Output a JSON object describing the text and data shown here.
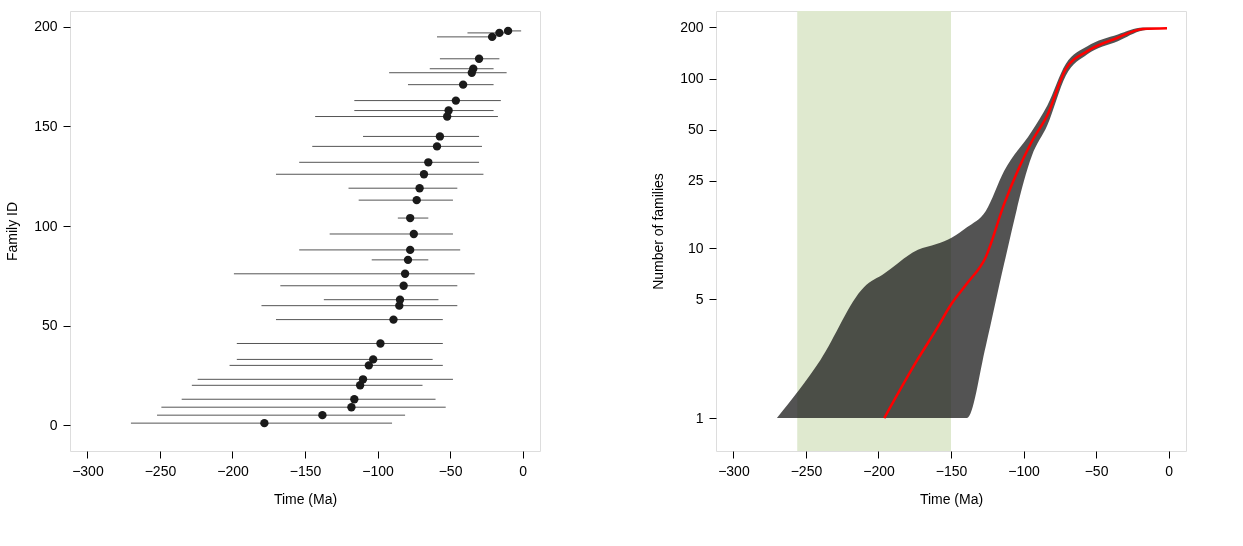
{
  "chart_data": [
    {
      "type": "scatter",
      "xlabel": "Time (Ma)",
      "ylabel": "Family ID",
      "xlim": [
        -312,
        12
      ],
      "xticks": [
        -300,
        -250,
        -200,
        -150,
        -100,
        -50,
        0
      ],
      "ylim": [
        -13,
        208
      ],
      "yticks": [
        0,
        50,
        100,
        150,
        200
      ],
      "grid": false,
      "marker": "circle",
      "series": [
        {
          "color": "#1a1a1a",
          "x": [
            -178,
            -138,
            -118,
            -116,
            -112,
            -110,
            -106,
            -103,
            -98,
            -89,
            -85,
            -84.5,
            -82,
            -81,
            -79,
            -77.5,
            -75,
            -77.5,
            -73,
            -71,
            -68,
            -65,
            -59,
            -57,
            -52,
            -51,
            -46,
            -41,
            -35,
            -34,
            -30,
            -21,
            -16,
            -10
          ],
          "values": [
            1,
            5,
            9,
            13,
            20,
            23,
            30,
            33,
            41,
            53,
            60,
            63,
            70,
            76,
            83,
            88,
            96,
            104,
            113,
            119,
            126,
            132,
            140,
            145,
            155,
            158,
            163,
            171,
            177,
            179,
            184,
            195,
            197,
            198
          ],
          "xerrors": [
            [
              -270,
              -90
            ],
            [
              -252,
              -81
            ],
            [
              -249,
              -53
            ],
            [
              -235,
              -60
            ],
            [
              -228,
              -69
            ],
            [
              -224,
              -48
            ],
            [
              -202,
              -55
            ],
            [
              -197,
              -62
            ],
            [
              -197,
              -55
            ],
            [
              -170,
              -55
            ],
            [
              -180,
              -45
            ],
            [
              -137,
              -58
            ],
            [
              -167,
              -45
            ],
            [
              -199,
              -33
            ],
            [
              -104,
              -65
            ],
            [
              -154,
              -43
            ],
            [
              -133,
              -48
            ],
            [
              -86,
              -65
            ],
            [
              -113,
              -48
            ],
            [
              -120,
              -45
            ],
            [
              -170,
              -27
            ],
            [
              -154,
              -30
            ],
            [
              -145,
              -28
            ],
            [
              -110,
              -30
            ],
            [
              -143,
              -17
            ],
            [
              -116,
              -20
            ],
            [
              -116,
              -15
            ],
            [
              -79,
              -20
            ],
            [
              -92,
              -11
            ],
            [
              -64,
              -20
            ],
            [
              -57,
              -16
            ],
            [
              -59,
              -18
            ],
            [
              -38,
              -8
            ],
            [
              -12,
              -1
            ]
          ]
        }
      ]
    },
    {
      "type": "line",
      "xlabel": "Time (Ma)",
      "ylabel": "Number of families",
      "xlim": [
        -312,
        12
      ],
      "xticks": [
        -300,
        -250,
        -200,
        -150,
        -100,
        -50,
        0
      ],
      "ylim": [
        0.64,
        250
      ],
      "yticks": [
        1,
        5,
        10,
        25,
        50,
        100,
        200
      ],
      "log": "y",
      "grid": false,
      "marker": "none",
      "line_style": "solid",
      "bands": [
        {
          "axis": "x",
          "from": -256,
          "to": -150,
          "color": "#dfe9cf"
        }
      ],
      "series": [
        {
          "color": "#ff0000",
          "x": [
            -270,
            -240,
            -210,
            -196,
            -172.8,
            -160,
            -149.3,
            -139,
            -126,
            -113.4,
            -94.3,
            -83.6,
            -70.9,
            -56,
            -35,
            -17.8,
            -1.1
          ],
          "values": [
            null,
            null,
            null,
            1,
            2.23,
            3.34,
            4.76,
            6.2,
            8.9,
            18.2,
            42.6,
            60.8,
            113.7,
            145,
            174,
            196,
            198
          ],
          "lower": [
            1,
            1,
            1,
            1,
            1,
            1,
            1,
            1,
            2.66,
            8.1,
            35,
            53,
            104,
            139,
            166,
            192,
            198
          ],
          "upper": [
            1,
            2.2,
            5.9,
            7.1,
            9.8,
            10.6,
            11.6,
            13.3,
            16.6,
            28.5,
            49,
            69.5,
            122,
            155,
            182,
            200,
            198
          ]
        }
      ]
    }
  ]
}
